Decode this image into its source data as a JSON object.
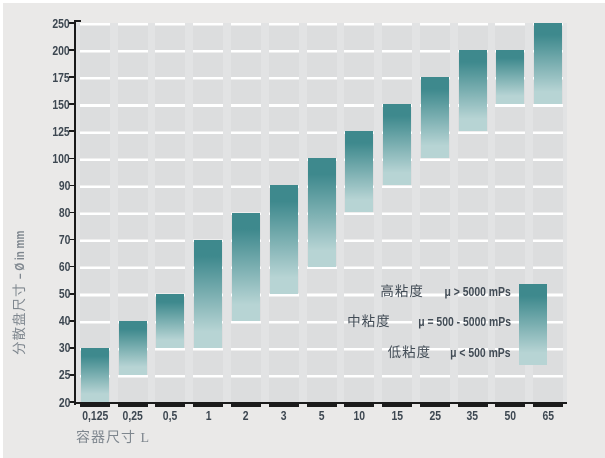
{
  "page": {
    "background": "#eae9e8"
  },
  "chart_data": {
    "type": "bar",
    "subtype": "floating-range-bars",
    "title": "",
    "xlabel": "容器尺寸 L",
    "ylabel": "分散盘尺寸 – Ø in mm",
    "ylabel_parts": {
      "cjk": "分散盘尺寸",
      "latin": "– Ø in mm"
    },
    "y_ticks": [
      20,
      25,
      30,
      40,
      50,
      60,
      70,
      80,
      90,
      100,
      125,
      150,
      175,
      200,
      250
    ],
    "y_scale": "ordinal-equal-spacing",
    "grid": "horizontal-white-lines-on-gray-columns",
    "categories": [
      "0,125",
      "0,25",
      "0,5",
      "1",
      "2",
      "3",
      "5",
      "10",
      "15",
      "25",
      "35",
      "50",
      "65"
    ],
    "bars": [
      {
        "category": "0,125",
        "from": 20,
        "to": 30
      },
      {
        "category": "0,25",
        "from": 25,
        "to": 40
      },
      {
        "category": "0,5",
        "from": 30,
        "to": 50
      },
      {
        "category": "1",
        "from": 30,
        "to": 70
      },
      {
        "category": "2",
        "from": 40,
        "to": 80
      },
      {
        "category": "3",
        "from": 50,
        "to": 90
      },
      {
        "category": "5",
        "from": 60,
        "to": 100
      },
      {
        "category": "10",
        "from": 80,
        "to": 125
      },
      {
        "category": "15",
        "from": 90,
        "to": 150
      },
      {
        "category": "25",
        "from": 100,
        "to": 175
      },
      {
        "category": "35",
        "from": 125,
        "to": 200
      },
      {
        "category": "50",
        "from": 150,
        "to": 200
      },
      {
        "category": "65",
        "from": 150,
        "to": 250
      }
    ],
    "legend": {
      "position": "inside-lower-right",
      "swatch": "vertical-gradient-dark-top-to-light-bottom",
      "entries": [
        {
          "cjk": "高粘度",
          "value": "μ > 5000 mPs",
          "label": "高粘度 μ > 5000 mPs"
        },
        {
          "cjk": "中粘度",
          "value": "μ = 500 - 5000 mPs",
          "label": "中粘度 μ = 500 - 5000 mPs"
        },
        {
          "cjk": "低粘度",
          "value": "μ < 500 mPs",
          "label": "低粘度 μ < 500 mPs"
        }
      ]
    },
    "colors": {
      "bar_gradient_top": "#3e898d",
      "bar_gradient_bottom": "#b7d4d4",
      "grid_column": "#dcddde",
      "grid_gap": "#e2e3e4",
      "grid_line": "#ffffff",
      "page_bg": "#eae9e8",
      "axis": "#1b1b1b",
      "tick_text": "#3d4751",
      "axis_title_text": "#7e868e",
      "legend_text": "#414b55"
    }
  }
}
